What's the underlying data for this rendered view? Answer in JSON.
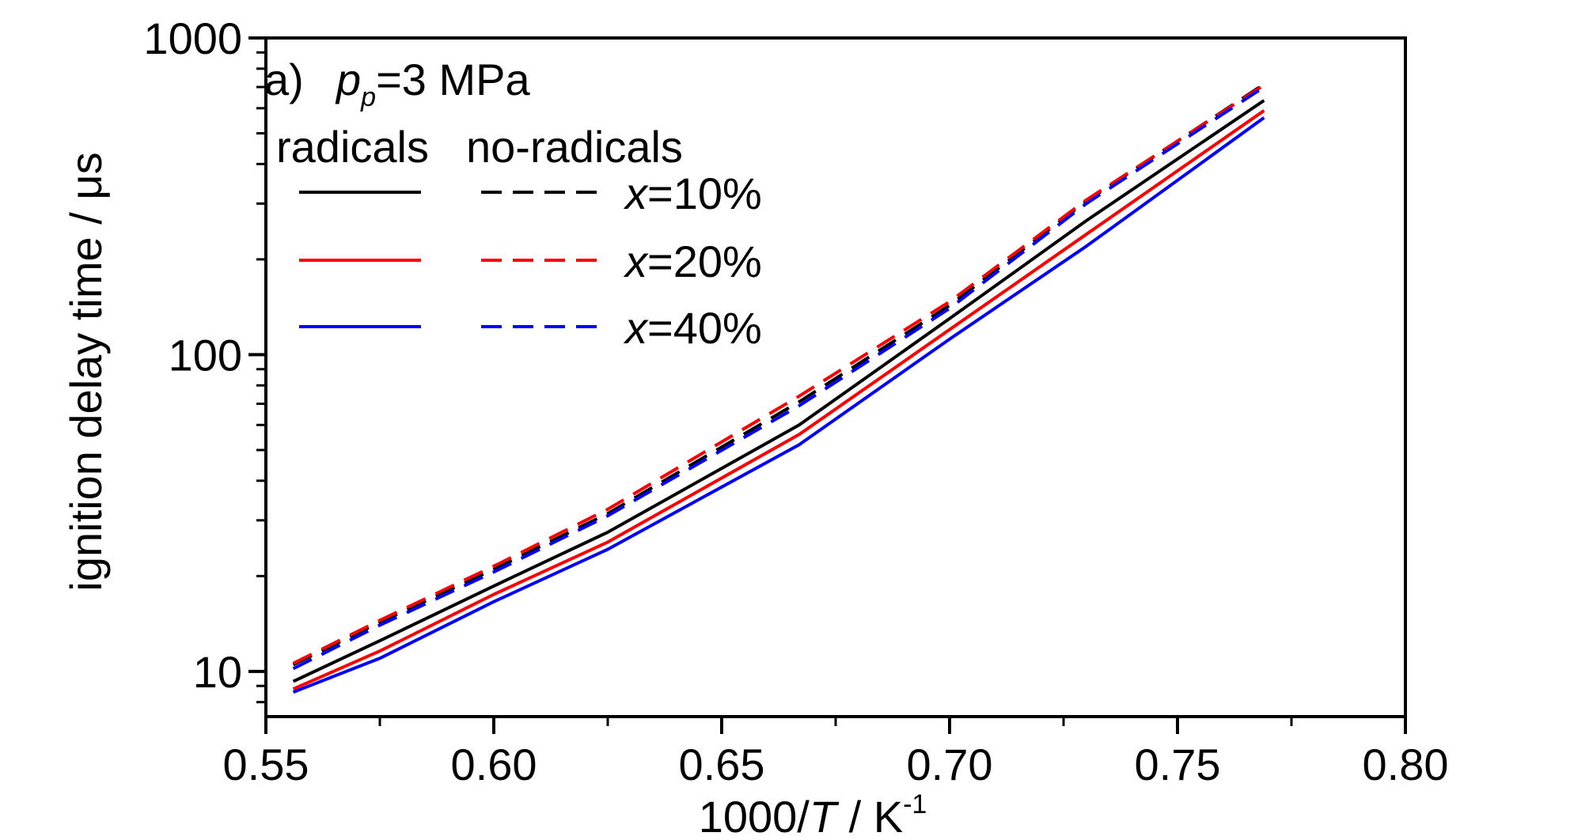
{
  "chart_data": {
    "type": "line",
    "panel_label": "a)",
    "condition_text": {
      "var": "p",
      "sub": "p",
      "rest": "=3 MPa"
    },
    "xlabel": {
      "prefix": "1000/",
      "var": "T",
      "units": " / K",
      "sup": "-1"
    },
    "ylabel": "ignition delay time / μs",
    "xlim": [
      0.55,
      0.8
    ],
    "ylim": [
      7.2,
      1000
    ],
    "yscale": "log",
    "grid": false,
    "x_ticks": [
      0.55,
      0.6,
      0.65,
      0.7,
      0.75,
      0.8
    ],
    "x_tick_labels": [
      "0.55",
      "0.60",
      "0.65",
      "0.70",
      "0.75",
      "0.80"
    ],
    "x_minor_ticks": [
      0.575,
      0.625,
      0.675,
      0.725,
      0.775
    ],
    "y_ticks": [
      10,
      100,
      1000
    ],
    "y_tick_labels": [
      "10",
      "100",
      "1000"
    ],
    "legend": {
      "placement": "top-left",
      "header_solid": "radicals",
      "header_dashed": "no-radicals",
      "entries": [
        {
          "var": "x",
          "text": "=10%",
          "color": "#000000"
        },
        {
          "var": "x",
          "text": "=20%",
          "color": "#ff0000"
        },
        {
          "var": "x",
          "text": "=40%",
          "color": "#0000ff"
        }
      ]
    },
    "series": [
      {
        "legend": "radicals x=10%",
        "color": "#000000",
        "dash": "solid",
        "x": [
          0.556,
          0.575,
          0.6,
          0.625,
          0.667,
          0.7,
          0.73,
          0.769
        ],
        "y": [
          9.3,
          12.5,
          18.6,
          27.5,
          60,
          130,
          265,
          635
        ]
      },
      {
        "legend": "radicals x=20%",
        "color": "#ff0000",
        "dash": "solid",
        "x": [
          0.556,
          0.575,
          0.6,
          0.625,
          0.667,
          0.7,
          0.73,
          0.769
        ],
        "y": [
          8.8,
          11.6,
          17.5,
          25.6,
          56,
          120,
          240,
          590
        ]
      },
      {
        "legend": "radicals x=40%",
        "color": "#0000ff",
        "dash": "solid",
        "x": [
          0.556,
          0.575,
          0.6,
          0.625,
          0.667,
          0.7,
          0.73,
          0.769
        ],
        "y": [
          8.6,
          11.0,
          16.6,
          24.3,
          52,
          112,
          220,
          560
        ]
      },
      {
        "legend": "no-radicals x=10%",
        "color": "#000000",
        "dash": "dashed",
        "x": [
          0.556,
          0.575,
          0.6,
          0.625,
          0.667,
          0.7,
          0.73,
          0.769
        ],
        "y": [
          10.5,
          14.3,
          21.0,
          31.5,
          71,
          143,
          305,
          715
        ]
      },
      {
        "legend": "no-radicals x=20%",
        "color": "#ff0000",
        "dash": "dashed",
        "x": [
          0.556,
          0.575,
          0.6,
          0.625,
          0.667,
          0.7,
          0.73,
          0.769
        ],
        "y": [
          10.6,
          14.5,
          21.5,
          32.5,
          74,
          147,
          308,
          710
        ]
      },
      {
        "legend": "no-radicals x=40%",
        "color": "#0000ff",
        "dash": "dashed",
        "x": [
          0.556,
          0.575,
          0.6,
          0.625,
          0.667,
          0.7,
          0.73,
          0.769
        ],
        "y": [
          10.2,
          14.0,
          20.6,
          31.0,
          69,
          140,
          300,
          700
        ]
      }
    ]
  }
}
